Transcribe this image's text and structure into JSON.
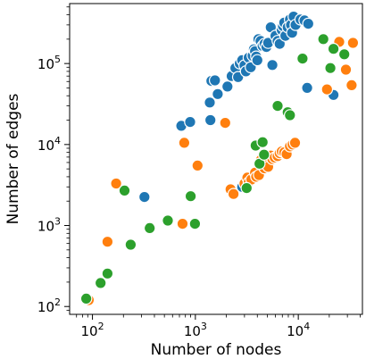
{
  "chart_data": {
    "type": "scatter",
    "title": "",
    "xlabel": "Number of nodes",
    "ylabel": "Number of edges",
    "xscale": "log",
    "yscale": "log",
    "xlim": [
      60,
      42000
    ],
    "ylim": [
      80,
      550000
    ],
    "grid": false,
    "legend": "none",
    "x_ticks": [
      {
        "value": 100,
        "base": "10",
        "exp": "2"
      },
      {
        "value": 1000,
        "base": "10",
        "exp": "3"
      },
      {
        "value": 10000,
        "base": "10",
        "exp": "4"
      }
    ],
    "y_ticks": [
      {
        "value": 100,
        "base": "10",
        "exp": "2"
      },
      {
        "value": 1000,
        "base": "10",
        "exp": "3"
      },
      {
        "value": 10000,
        "base": "10",
        "exp": "4"
      },
      {
        "value": 100000,
        "base": "10",
        "exp": "5"
      }
    ],
    "series": [
      {
        "color": "#1f77b4",
        "points": [
          [
            320,
            2250
          ],
          [
            730,
            17000
          ],
          [
            890,
            19000
          ],
          [
            1400,
            20000
          ],
          [
            1380,
            33000
          ],
          [
            1430,
            61000
          ],
          [
            1550,
            62000
          ],
          [
            1650,
            42000
          ],
          [
            2050,
            52000
          ],
          [
            2250,
            70000
          ],
          [
            2450,
            88000
          ],
          [
            2600,
            68000
          ],
          [
            2700,
            100000
          ],
          [
            2850,
            110000
          ],
          [
            3000,
            95000
          ],
          [
            3100,
            80000
          ],
          [
            3300,
            118000
          ],
          [
            3450,
            90000
          ],
          [
            3600,
            125000
          ],
          [
            3700,
            150000
          ],
          [
            3800,
            142000
          ],
          [
            3900,
            122000
          ],
          [
            4000,
            110000
          ],
          [
            4100,
            200000
          ],
          [
            4300,
            190000
          ],
          [
            4500,
            165000
          ],
          [
            4700,
            175000
          ],
          [
            4900,
            160000
          ],
          [
            5100,
            180000
          ],
          [
            5400,
            280000
          ],
          [
            5600,
            96000
          ],
          [
            6000,
            220000
          ],
          [
            6300,
            190000
          ],
          [
            6600,
            175000
          ],
          [
            6900,
            260000
          ],
          [
            7100,
            290000
          ],
          [
            7300,
            320000
          ],
          [
            7500,
            220000
          ],
          [
            7900,
            280000
          ],
          [
            8300,
            350000
          ],
          [
            8500,
            300000
          ],
          [
            8700,
            240000
          ],
          [
            9000,
            380000
          ],
          [
            9400,
            300000
          ],
          [
            10500,
            350000
          ],
          [
            11500,
            340000
          ],
          [
            12500,
            310000
          ],
          [
            12200,
            50000
          ],
          [
            22000,
            41000
          ],
          [
            2850,
            3000
          ]
        ]
      },
      {
        "color": "#ff7f0e",
        "points": [
          [
            92,
            120
          ],
          [
            140,
            630
          ],
          [
            170,
            3300
          ],
          [
            750,
            1050
          ],
          [
            780,
            10500
          ],
          [
            1050,
            5500
          ],
          [
            1950,
            18500
          ],
          [
            2200,
            2800
          ],
          [
            2350,
            2450
          ],
          [
            3000,
            3300
          ],
          [
            3200,
            3900
          ],
          [
            3300,
            3400
          ],
          [
            3500,
            3700
          ],
          [
            3800,
            4500
          ],
          [
            3900,
            4000
          ],
          [
            4150,
            4200
          ],
          [
            4350,
            6500
          ],
          [
            4500,
            5500
          ],
          [
            4700,
            5100
          ],
          [
            4900,
            6000
          ],
          [
            5100,
            5300
          ],
          [
            5400,
            7300
          ],
          [
            5600,
            6600
          ],
          [
            5900,
            6900
          ],
          [
            6300,
            7200
          ],
          [
            6600,
            7800
          ],
          [
            6900,
            8200
          ],
          [
            7300,
            8000
          ],
          [
            7700,
            7600
          ],
          [
            8300,
            9500
          ],
          [
            8800,
            10000
          ],
          [
            9300,
            10500
          ],
          [
            19000,
            48000
          ],
          [
            25000,
            185000
          ],
          [
            29000,
            84000
          ],
          [
            33000,
            54000
          ],
          [
            34000,
            180000
          ]
        ]
      },
      {
        "color": "#2ca02c",
        "points": [
          [
            87,
            125
          ],
          [
            120,
            195
          ],
          [
            140,
            255
          ],
          [
            205,
            2700
          ],
          [
            235,
            580
          ],
          [
            360,
            930
          ],
          [
            540,
            1150
          ],
          [
            900,
            2300
          ],
          [
            990,
            1050
          ],
          [
            3150,
            2900
          ],
          [
            3850,
            9700
          ],
          [
            4200,
            5800
          ],
          [
            4500,
            10700
          ],
          [
            4650,
            7500
          ],
          [
            6300,
            30000
          ],
          [
            7900,
            25000
          ],
          [
            8300,
            23000
          ],
          [
            11000,
            115000
          ],
          [
            17500,
            200000
          ],
          [
            20500,
            88000
          ],
          [
            22000,
            152000
          ],
          [
            28000,
            130000
          ]
        ]
      }
    ]
  }
}
